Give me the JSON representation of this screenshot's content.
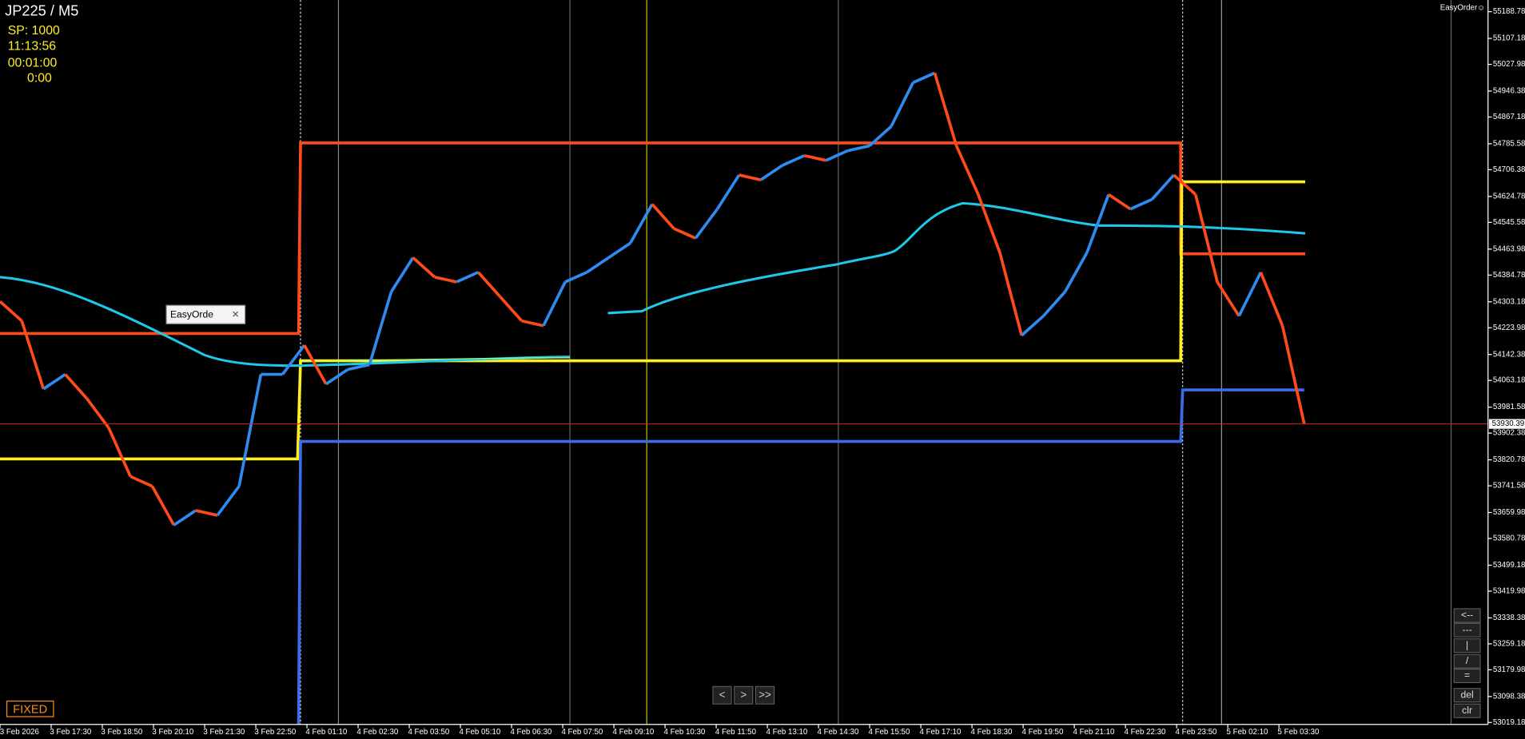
{
  "header": {
    "symbol": "JP225 / M5",
    "spread": "SP: 1000",
    "clock": "11:13:56",
    "timeframe": "00:01:00",
    "countdown": "0:00"
  },
  "easyorder_title": "EasyOrder☺",
  "easyorder_panel": "EasyOrde",
  "mode": "FIXED",
  "nav_buttons": [
    "<",
    ">",
    ">>"
  ],
  "tool_buttons": [
    "<--",
    "---",
    "|",
    "/",
    "=",
    "del",
    "clr"
  ],
  "chart": {
    "type": "price-line",
    "up_color": "#2e8bef",
    "down_color": "#ff4a1a",
    "ylim": [
      53013.2,
      55224.4
    ],
    "yticks": [
      55188.78,
      55107.18,
      55027.98,
      54946.38,
      54867.18,
      54785.58,
      54706.38,
      54624.78,
      54545.58,
      54463.98,
      54384.78,
      54303.18,
      54223.98,
      54142.38,
      54063.18,
      53981.58,
      53902.38,
      53820.78,
      53741.58,
      53659.98,
      53580.78,
      53499.18,
      53419.98,
      53338.38,
      53259.18,
      53179.98,
      53098.38,
      53019.18
    ],
    "current_price": 53930.39,
    "time_labels": [
      "3 Feb 2026",
      "3 Feb 17:30",
      "3 Feb 18:50",
      "3 Feb 20:10",
      "3 Feb 21:30",
      "3 Feb 22:50",
      "4 Feb 01:10",
      "4 Feb 02:30",
      "4 Feb 03:50",
      "4 Feb 05:10",
      "4 Feb 06:30",
      "4 Feb 07:50",
      "4 Feb 09:10",
      "4 Feb 10:30",
      "4 Feb 11:50",
      "4 Feb 13:10",
      "4 Feb 14:30",
      "4 Feb 15:50",
      "4 Feb 17:10",
      "4 Feb 18:30",
      "4 Feb 19:50",
      "4 Feb 21:10",
      "4 Feb 22:30",
      "4 Feb 23:50",
      "5 Feb 02:10",
      "5 Feb 03:30"
    ],
    "price": [
      54304.3,
      54245.0,
      54037.2,
      54081.7,
      54007.5,
      53918.5,
      53770.1,
      53740.4,
      53621.7,
      53666.2,
      53651.4,
      53740.4,
      54081.7,
      54081.7,
      54170.8,
      54052.0,
      54096.6,
      54111.4,
      54334.0,
      54437.9,
      54378.5,
      54363.7,
      54393.4,
      54319.2,
      54245.0,
      54230.1,
      54363.7,
      54393.4,
      54437.9,
      54482.4,
      54601.1,
      54526.9,
      54497.2,
      54586.3,
      54690.2,
      54675.3,
      54719.8,
      54749.5,
      54734.7,
      54764.4,
      54779.2,
      54838.6,
      54972.1,
      55001.8,
      54779.2,
      54630.8,
      54452.7,
      54200.4,
      54259.8,
      54334.0,
      54452.7,
      54630.8,
      54586.3,
      54616.0,
      54690.2,
      54630.8,
      54363.7,
      54259.8,
      54393.4,
      54230.1,
      53930.39
    ]
  }
}
